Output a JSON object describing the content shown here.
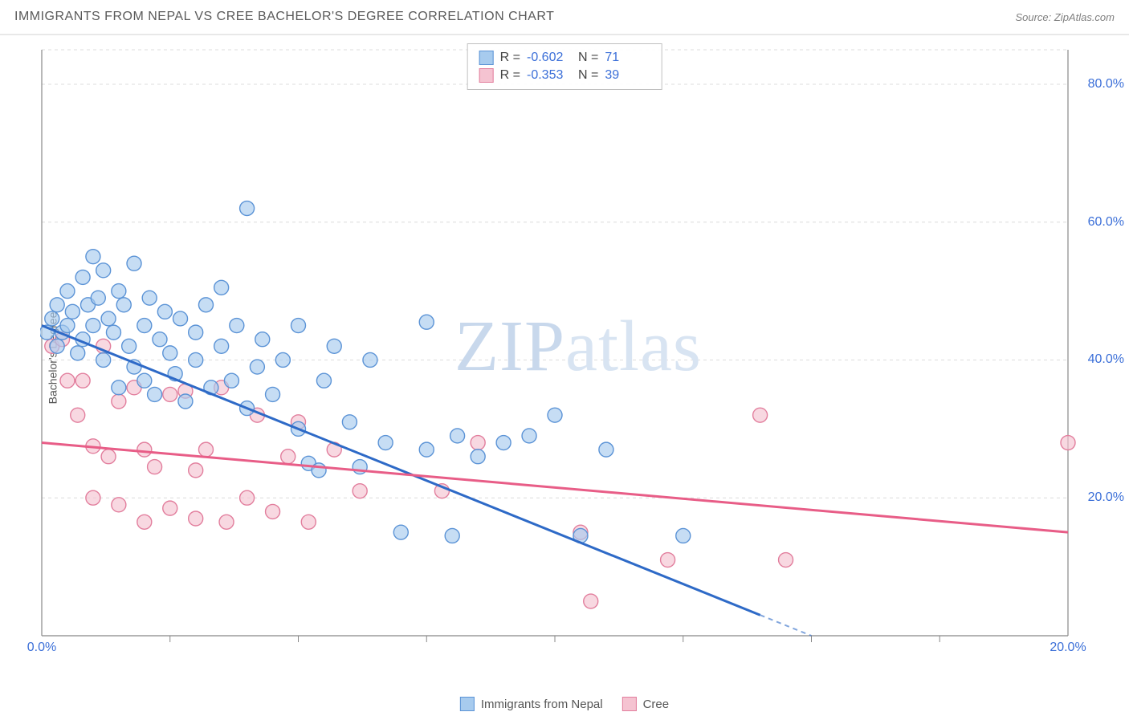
{
  "header": {
    "title": "IMMIGRANTS FROM NEPAL VS CREE BACHELOR'S DEGREE CORRELATION CHART",
    "source_prefix": "Source: ",
    "source": "ZipAtlas.com"
  },
  "watermark": "ZIPatlas",
  "y_axis_label": "Bachelor's Degree",
  "chart": {
    "type": "scatter",
    "background_color": "#ffffff",
    "grid_color": "#dcdcdc",
    "axis_color": "#888888",
    "xlim": [
      0,
      20
    ],
    "ylim": [
      0,
      85
    ],
    "y_ticks": [
      {
        "value": 20,
        "label": "20.0%"
      },
      {
        "value": 40,
        "label": "40.0%"
      },
      {
        "value": 60,
        "label": "60.0%"
      },
      {
        "value": 80,
        "label": "80.0%"
      }
    ],
    "x_ticks_major": [
      {
        "value": 0,
        "label": "0.0%"
      },
      {
        "value": 20,
        "label": "20.0%"
      }
    ],
    "x_ticks_minor": [
      2.5,
      5,
      7.5,
      10,
      12.5,
      15,
      17.5
    ],
    "marker_radius": 9,
    "marker_stroke_width": 1.4,
    "trend_line_width": 3,
    "trend_dash_width": 2
  },
  "series": [
    {
      "id": "nepal",
      "label": "Immigrants from Nepal",
      "fill": "#a7cbee",
      "stroke": "#5b93d6",
      "line_color": "#2e6ac7",
      "R": "-0.602",
      "N": "71",
      "trend": {
        "x1": 0,
        "y1": 45,
        "x2": 15,
        "y2": 0,
        "dash_from_x": 14
      },
      "points": [
        [
          0.1,
          44
        ],
        [
          0.2,
          46
        ],
        [
          0.3,
          48
        ],
        [
          0.3,
          42
        ],
        [
          0.4,
          44
        ],
        [
          0.5,
          50
        ],
        [
          0.5,
          45
        ],
        [
          0.6,
          47
        ],
        [
          0.7,
          41
        ],
        [
          0.8,
          52
        ],
        [
          0.8,
          43
        ],
        [
          0.9,
          48
        ],
        [
          1.0,
          45
        ],
        [
          1.0,
          55
        ],
        [
          1.1,
          49
        ],
        [
          1.2,
          40
        ],
        [
          1.2,
          53
        ],
        [
          1.3,
          46
        ],
        [
          1.4,
          44
        ],
        [
          1.5,
          36
        ],
        [
          1.5,
          50
        ],
        [
          1.6,
          48
        ],
        [
          1.7,
          42
        ],
        [
          1.8,
          39
        ],
        [
          1.8,
          54
        ],
        [
          2.0,
          45
        ],
        [
          2.0,
          37
        ],
        [
          2.1,
          49
        ],
        [
          2.2,
          35
        ],
        [
          2.3,
          43
        ],
        [
          2.4,
          47
        ],
        [
          2.5,
          41
        ],
        [
          2.6,
          38
        ],
        [
          2.7,
          46
        ],
        [
          2.8,
          34
        ],
        [
          3.0,
          44
        ],
        [
          3.0,
          40
        ],
        [
          3.2,
          48
        ],
        [
          3.3,
          36
        ],
        [
          3.5,
          42
        ],
        [
          3.5,
          50.5
        ],
        [
          3.7,
          37
        ],
        [
          3.8,
          45
        ],
        [
          4.0,
          62
        ],
        [
          4.0,
          33
        ],
        [
          4.2,
          39
        ],
        [
          4.3,
          43
        ],
        [
          4.5,
          35
        ],
        [
          4.7,
          40
        ],
        [
          5.0,
          45
        ],
        [
          5.0,
          30
        ],
        [
          5.2,
          25
        ],
        [
          5.4,
          24
        ],
        [
          5.5,
          37
        ],
        [
          5.7,
          42
        ],
        [
          6.0,
          31
        ],
        [
          6.2,
          24.5
        ],
        [
          6.4,
          40
        ],
        [
          6.7,
          28
        ],
        [
          7.0,
          15
        ],
        [
          7.5,
          45.5
        ],
        [
          7.5,
          27
        ],
        [
          8.0,
          14.5
        ],
        [
          8.1,
          29
        ],
        [
          8.5,
          26
        ],
        [
          9.0,
          28
        ],
        [
          9.5,
          29
        ],
        [
          10.0,
          32
        ],
        [
          10.5,
          14.5
        ],
        [
          11.0,
          27
        ],
        [
          12.5,
          14.5
        ]
      ]
    },
    {
      "id": "cree",
      "label": "Cree",
      "fill": "#f5c3d1",
      "stroke": "#e27e9d",
      "line_color": "#e85d87",
      "R": "-0.353",
      "N": "39",
      "trend": {
        "x1": 0,
        "y1": 28,
        "x2": 20,
        "y2": 15,
        "dash_from_x": 20
      },
      "points": [
        [
          0.2,
          42
        ],
        [
          0.4,
          43
        ],
        [
          0.5,
          37
        ],
        [
          0.7,
          32
        ],
        [
          0.8,
          37
        ],
        [
          1.0,
          27.5
        ],
        [
          1.0,
          20
        ],
        [
          1.2,
          42
        ],
        [
          1.3,
          26
        ],
        [
          1.5,
          34
        ],
        [
          1.5,
          19
        ],
        [
          1.8,
          36
        ],
        [
          2.0,
          27
        ],
        [
          2.0,
          16.5
        ],
        [
          2.2,
          24.5
        ],
        [
          2.5,
          35
        ],
        [
          2.5,
          18.5
        ],
        [
          2.8,
          35.5
        ],
        [
          3.0,
          24
        ],
        [
          3.0,
          17
        ],
        [
          3.2,
          27
        ],
        [
          3.5,
          36
        ],
        [
          3.6,
          16.5
        ],
        [
          4.0,
          20
        ],
        [
          4.2,
          32
        ],
        [
          4.5,
          18
        ],
        [
          4.8,
          26
        ],
        [
          5.0,
          31
        ],
        [
          5.2,
          16.5
        ],
        [
          5.7,
          27
        ],
        [
          6.2,
          21
        ],
        [
          7.8,
          21
        ],
        [
          8.5,
          28
        ],
        [
          10.5,
          15
        ],
        [
          10.7,
          5
        ],
        [
          12.2,
          11
        ],
        [
          14.0,
          32
        ],
        [
          14.5,
          11
        ],
        [
          20.0,
          28
        ]
      ]
    }
  ],
  "top_legend_cols": [
    "R =",
    "N ="
  ],
  "bottom_legend_text_color": "#555555"
}
